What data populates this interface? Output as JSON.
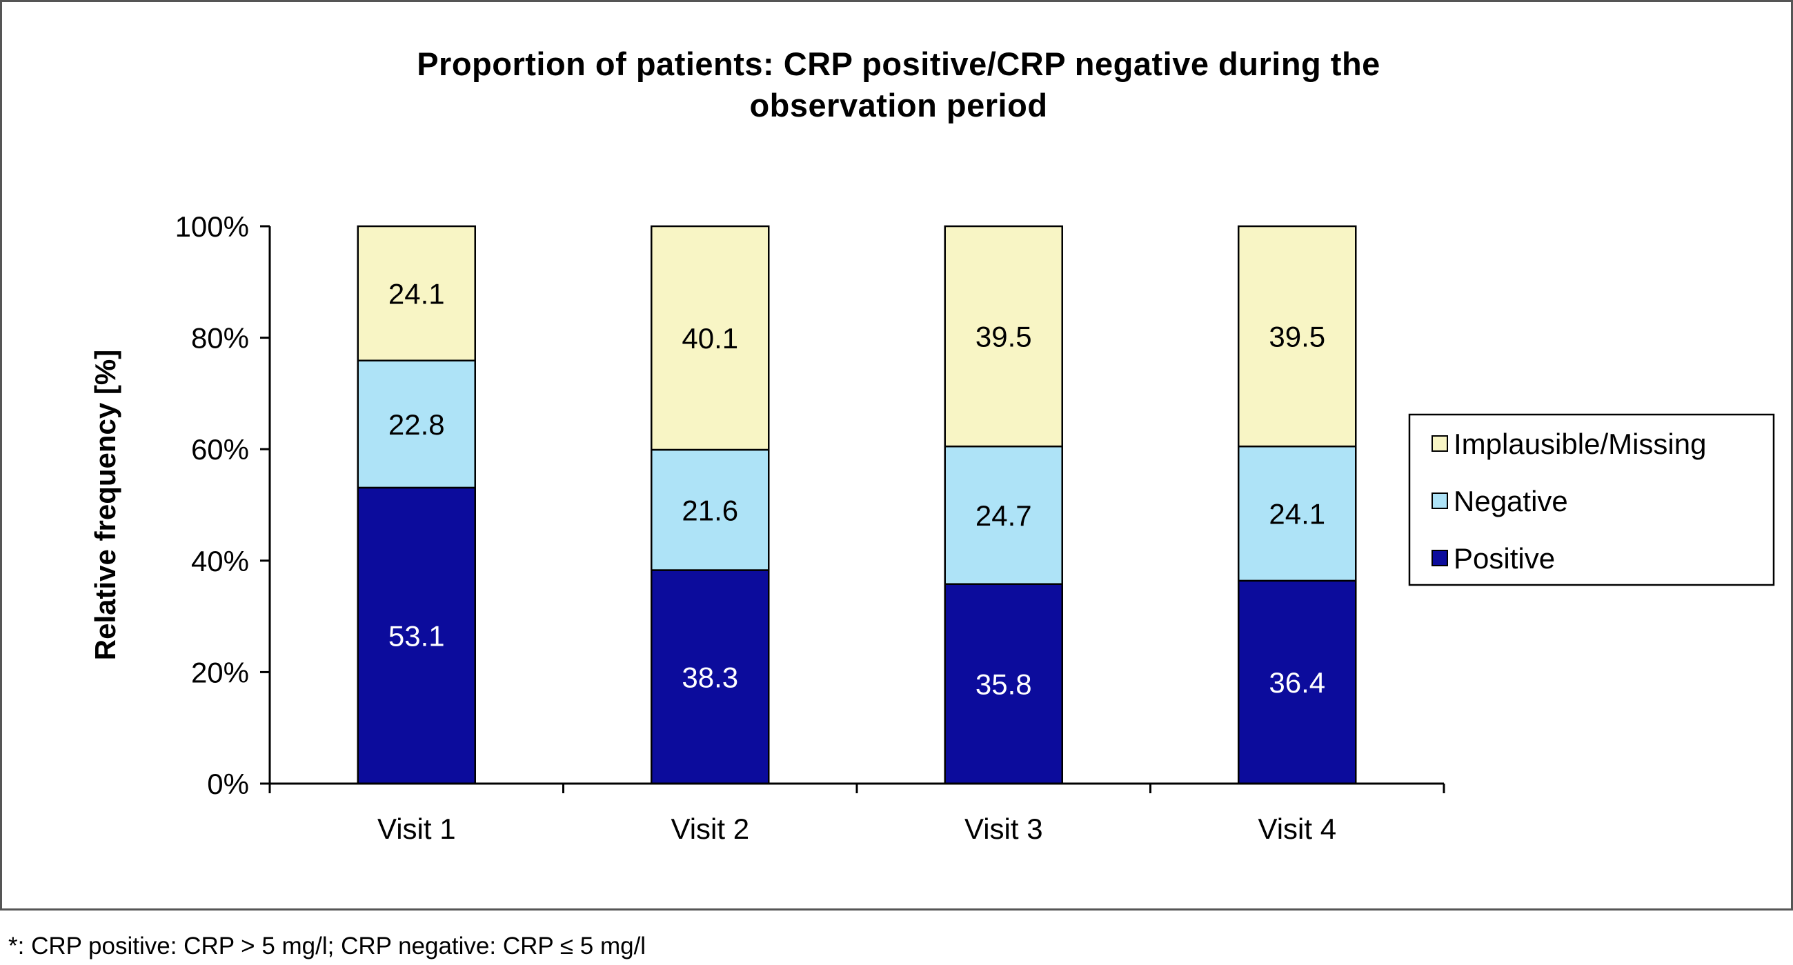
{
  "chart_data": {
    "type": "bar",
    "stacked": true,
    "title": "Proportion of patients: CRP positive/CRP negative during the observation period",
    "title_lines": [
      "Proportion of patients: CRP positive/CRP negative during the",
      "observation period"
    ],
    "xlabel": "",
    "ylabel": "Relative frequency [%]",
    "ylim": [
      0,
      100
    ],
    "ytick_labels": [
      "0%",
      "20%",
      "40%",
      "60%",
      "80%",
      "100%"
    ],
    "categories": [
      "Visit 1",
      "Visit 2",
      "Visit 3",
      "Visit 4"
    ],
    "series": [
      {
        "name": "Positive",
        "color": "#0c0c9c",
        "label_color": "#ffffff",
        "values": [
          53.1,
          38.3,
          35.8,
          36.4
        ]
      },
      {
        "name": "Negative",
        "color": "#aee3f7",
        "label_color": "#000000",
        "values": [
          22.8,
          21.6,
          24.7,
          24.1
        ]
      },
      {
        "name": "Implausible/Missing",
        "color": "#f8f5c5",
        "label_color": "#000000",
        "values": [
          24.1,
          40.1,
          39.5,
          39.5
        ]
      }
    ],
    "value_labels": [
      "53.1",
      "38.3",
      "35.8",
      "36.4",
      "22.8",
      "21.6",
      "24.7",
      "24.1",
      "24.1",
      "40.1",
      "39.5",
      "39.5"
    ],
    "legend": {
      "placement": "right",
      "order": [
        "Implausible/Missing",
        "Negative",
        "Positive"
      ]
    },
    "grid": false
  },
  "footnote": "*: CRP positive: CRP > 5 mg/l; CRP negative: CRP ≤ 5 mg/l"
}
